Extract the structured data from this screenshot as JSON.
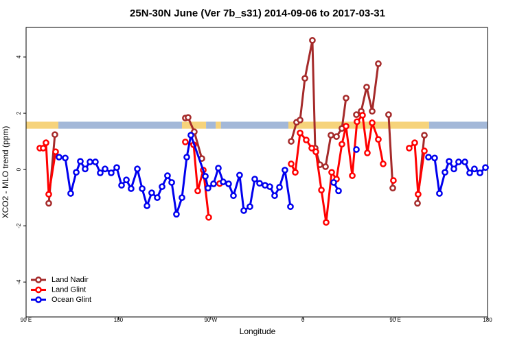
{
  "chart_data": {
    "type": "line",
    "title": "25N-30N June (Ver 7b_s31)   2014-09-06 to 2017-03-31",
    "xlabel": "Longitude",
    "ylabel": "XCO2 - MLO trend (ppm)",
    "xlim": [
      90,
      540
    ],
    "ylim": [
      -5.24,
      5.05
    ],
    "xticks": [
      {
        "value": 90,
        "label": "90 E"
      },
      180,
      {
        "value": 270,
        "label": "90 W"
      },
      {
        "value": 360,
        "label": "0"
      },
      {
        "value": 450,
        "label": "90 E"
      },
      {
        "value": 540,
        "label": "180"
      }
    ],
    "yticks": [
      -4,
      -2,
      0,
      2,
      4
    ],
    "legend": "bottom-left",
    "band": {
      "ylim": [
        1.45,
        1.7
      ],
      "segments": [
        {
          "start": 90,
          "end": 121.5,
          "color": "#f6d37b"
        },
        {
          "start": 121.5,
          "end": 242,
          "color": "#a3b8d8"
        },
        {
          "start": 242,
          "end": 265.5,
          "color": "#f6d37b"
        },
        {
          "start": 265.5,
          "end": 275,
          "color": "#a3b8d8"
        },
        {
          "start": 275,
          "end": 280,
          "color": "#f6d37b"
        },
        {
          "start": 280,
          "end": 345.8,
          "color": "#a3b8d8"
        },
        {
          "start": 345.8,
          "end": 483,
          "color": "#f6d37b"
        },
        {
          "start": 483,
          "end": 540,
          "color": "#a3b8d8"
        }
      ]
    },
    "series": [
      {
        "name": "Land Nadir",
        "color": "#a52a2a",
        "x": [
          112.1,
          118.1,
          null,
          245.3,
          248,
          254,
          261.4,
          null,
          348.5,
          353.8,
          357.2,
          361.9,
          369.2,
          371.9,
          376.6,
          382,
          387.3,
          392.7,
          398,
          402,
          null,
          412.1,
          416.8,
          422.1,
          427.5,
          433.5,
          null,
          443.5,
          447.6,
          null,
          471.7,
          478.4
        ],
        "values": [
          -1.2,
          1.24,
          null,
          1.83,
          1.85,
          1.34,
          0.39,
          null,
          1.0,
          1.68,
          1.76,
          3.24,
          4.59,
          0.76,
          0.17,
          0.1,
          1.22,
          1.17,
          1.46,
          2.54,
          null,
          1.95,
          2.07,
          2.93,
          2.07,
          3.76,
          null,
          1.95,
          -0.66,
          null,
          -1.2,
          1.22
        ]
      },
      {
        "name": "Land Glint",
        "color": "#ff0000",
        "x": [
          103.4,
          106.7,
          109.4,
          112.1,
          118.8,
          null,
          245.3,
          253.4,
          257.4,
          262.8,
          268.1,
          null,
          278.8,
          null,
          348.5,
          352.5,
          357.2,
          363.2,
          368.6,
          372.6,
          378,
          382.6,
          388,
          392.7,
          398,
          402,
          408.1,
          412.7,
          418.1,
          422.8,
          427.5,
          433.5,
          438.2,
          null,
          448.2,
          null,
          463.6,
          469,
          472.3,
          478.4
        ],
        "values": [
          0.76,
          0.76,
          0.95,
          -0.88,
          0.63,
          null,
          0.98,
          0.88,
          -0.76,
          -0.02,
          -1.7,
          null,
          -0.5,
          null,
          0.2,
          -0.1,
          1.3,
          1.05,
          0.76,
          0.63,
          -0.73,
          -1.88,
          -0.1,
          -0.34,
          0.9,
          1.54,
          -0.22,
          1.7,
          1.93,
          0.59,
          1.66,
          1.07,
          0.2,
          null,
          -0.39,
          null,
          0.76,
          0.95,
          -0.88,
          0.66
        ]
      },
      {
        "name": "Ocean Glint",
        "color": "#0000ee",
        "x": [
          122.1,
          128.2,
          133.5,
          138.9,
          142.9,
          147.6,
          152.3,
          157.6,
          162.3,
          167,
          173,
          178.4,
          183.1,
          187.8,
          192.4,
          198.5,
          203.2,
          207.9,
          212.5,
          217.9,
          222.6,
          227.9,
          232,
          236.6,
          242,
          246.7,
          250.7,
          264.8,
          267.4,
          272.8,
          277.5,
          282.2,
          287.5,
          292.2,
          298.2,
          302.3,
          308.3,
          313,
          317.7,
          323,
          327.7,
          332.4,
          337.1,
          342.4,
          347.8,
          null,
          390,
          394.7,
          null,
          412.1,
          null,
          482.4,
          488.4,
          493.1,
          498.5,
          502.5,
          507.2,
          511.8,
          517.9,
          522.6,
          527.2,
          532.6,
          538
        ],
        "values": [
          0.44,
          0.41,
          -0.85,
          -0.1,
          0.29,
          0.02,
          0.27,
          0.27,
          -0.12,
          0.02,
          -0.12,
          0.07,
          -0.56,
          -0.37,
          -0.68,
          0.02,
          -0.68,
          -1.29,
          -0.83,
          -1.0,
          -0.61,
          -0.22,
          -0.46,
          -1.59,
          -1.0,
          0.44,
          1.22,
          -0.24,
          -0.66,
          -0.51,
          0.05,
          -0.44,
          -0.51,
          -0.93,
          -0.2,
          -1.46,
          -1.32,
          -0.34,
          -0.49,
          -0.56,
          -0.61,
          -0.93,
          -0.63,
          -0.02,
          -1.32,
          null,
          -0.46,
          -0.76,
          null,
          0.71,
          null,
          0.44,
          0.41,
          -0.85,
          -0.1,
          0.29,
          0.02,
          0.27,
          0.27,
          -0.12,
          0.02,
          -0.12,
          0.07
        ]
      }
    ]
  }
}
